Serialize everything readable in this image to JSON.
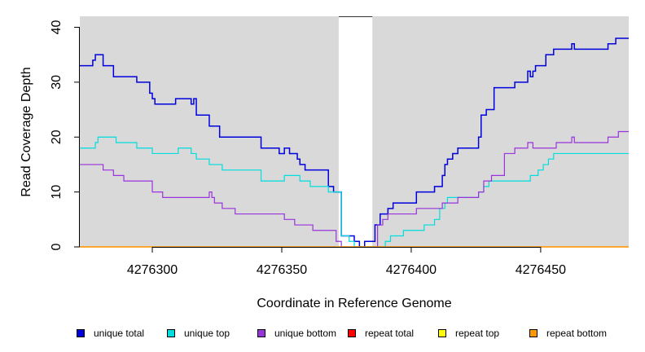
{
  "chart_data": {
    "type": "line",
    "title": "",
    "xlabel": "Coordinate in Reference Genome",
    "ylabel": "Read Coverage Depth",
    "xlim": [
      4276272,
      4276484
    ],
    "ylim": [
      0,
      42
    ],
    "x_ticks": [
      4276300,
      4276350,
      4276400,
      4276450
    ],
    "y_ticks": [
      0,
      10,
      20,
      30,
      40
    ],
    "background_color": "#d9d9d9",
    "gap_region": [
      4276372,
      4276385
    ],
    "legend_position": "bottom",
    "series": [
      {
        "name": "unique total",
        "color": "#0000dd",
        "points": [
          [
            4276272,
            33
          ],
          [
            4276277,
            34
          ],
          [
            4276278,
            35
          ],
          [
            4276281,
            33
          ],
          [
            4276285,
            31
          ],
          [
            4276294,
            30
          ],
          [
            4276299,
            28
          ],
          [
            4276300,
            27
          ],
          [
            4276301,
            26
          ],
          [
            4276309,
            27
          ],
          [
            4276315,
            26
          ],
          [
            4276316,
            27
          ],
          [
            4276317,
            24
          ],
          [
            4276322,
            22
          ],
          [
            4276326,
            20
          ],
          [
            4276336,
            20
          ],
          [
            4276342,
            18
          ],
          [
            4276349,
            17
          ],
          [
            4276351,
            18
          ],
          [
            4276353,
            17
          ],
          [
            4276356,
            16
          ],
          [
            4276357,
            15
          ],
          [
            4276359,
            14
          ],
          [
            4276368,
            11
          ],
          [
            4276370,
            10
          ],
          [
            4276373,
            2
          ],
          [
            4276378,
            1
          ],
          [
            4276380,
            0
          ],
          [
            4276382,
            1
          ],
          [
            4276386,
            4
          ],
          [
            4276388,
            6
          ],
          [
            4276391,
            7
          ],
          [
            4276393,
            8
          ],
          [
            4276402,
            10
          ],
          [
            4276409,
            11
          ],
          [
            4276412,
            13
          ],
          [
            4276413,
            15
          ],
          [
            4276414,
            16
          ],
          [
            4276416,
            17
          ],
          [
            4276418,
            18
          ],
          [
            4276426,
            20
          ],
          [
            4276427,
            24
          ],
          [
            4276429,
            25
          ],
          [
            4276432,
            29
          ],
          [
            4276440,
            30
          ],
          [
            4276445,
            32
          ],
          [
            4276446,
            31
          ],
          [
            4276447,
            32
          ],
          [
            4276448,
            33
          ],
          [
            4276452,
            35
          ],
          [
            4276455,
            36
          ],
          [
            4276462,
            37
          ],
          [
            4276463,
            36
          ],
          [
            4276476,
            37
          ],
          [
            4276479,
            38
          ],
          [
            4276484,
            38
          ]
        ]
      },
      {
        "name": "unique top",
        "color": "#00dddd",
        "points": [
          [
            4276272,
            18
          ],
          [
            4276278,
            19
          ],
          [
            4276279,
            20
          ],
          [
            4276286,
            19
          ],
          [
            4276294,
            18
          ],
          [
            4276300,
            17
          ],
          [
            4276310,
            18
          ],
          [
            4276315,
            17
          ],
          [
            4276317,
            16
          ],
          [
            4276322,
            15
          ],
          [
            4276327,
            14
          ],
          [
            4276342,
            12
          ],
          [
            4276351,
            13
          ],
          [
            4276357,
            12
          ],
          [
            4276361,
            11
          ],
          [
            4276368,
            10
          ],
          [
            4276373,
            2
          ],
          [
            4276376,
            1
          ],
          [
            4276378,
            0
          ],
          [
            4276388,
            0
          ],
          [
            4276390,
            1
          ],
          [
            4276392,
            2
          ],
          [
            4276397,
            3
          ],
          [
            4276405,
            4
          ],
          [
            4276409,
            5
          ],
          [
            4276411,
            7
          ],
          [
            4276413,
            8
          ],
          [
            4276414,
            9
          ],
          [
            4276426,
            10
          ],
          [
            4276428,
            11
          ],
          [
            4276430,
            12
          ],
          [
            4276446,
            13
          ],
          [
            4276449,
            14
          ],
          [
            4276451,
            15
          ],
          [
            4276453,
            16
          ],
          [
            4276455,
            17
          ],
          [
            4276484,
            17
          ]
        ]
      },
      {
        "name": "unique bottom",
        "color": "#9933dd",
        "points": [
          [
            4276272,
            15
          ],
          [
            4276281,
            14
          ],
          [
            4276285,
            13
          ],
          [
            4276289,
            12
          ],
          [
            4276300,
            10
          ],
          [
            4276304,
            9
          ],
          [
            4276322,
            10
          ],
          [
            4276323,
            9
          ],
          [
            4276324,
            8
          ],
          [
            4276327,
            7
          ],
          [
            4276332,
            6
          ],
          [
            4276351,
            5
          ],
          [
            4276355,
            4
          ],
          [
            4276362,
            3
          ],
          [
            4276371,
            1
          ],
          [
            4276373,
            0
          ],
          [
            4276385,
            0
          ],
          [
            4276387,
            4
          ],
          [
            4276389,
            5
          ],
          [
            4276391,
            6
          ],
          [
            4276402,
            7
          ],
          [
            4276412,
            8
          ],
          [
            4276418,
            9
          ],
          [
            4276426,
            10
          ],
          [
            4276428,
            12
          ],
          [
            4276431,
            13
          ],
          [
            4276436,
            17
          ],
          [
            4276440,
            18
          ],
          [
            4276445,
            19
          ],
          [
            4276447,
            18
          ],
          [
            4276456,
            19
          ],
          [
            4276462,
            20
          ],
          [
            4276463,
            19
          ],
          [
            4276474,
            19
          ],
          [
            4276476,
            20
          ],
          [
            4276480,
            21
          ],
          [
            4276484,
            21
          ]
        ]
      },
      {
        "name": "repeat total",
        "color": "#ff0000",
        "points": [
          [
            4276272,
            0
          ],
          [
            4276484,
            0
          ]
        ]
      },
      {
        "name": "repeat top",
        "color": "#ffff00",
        "points": [
          [
            4276272,
            0
          ],
          [
            4276484,
            0
          ]
        ]
      },
      {
        "name": "repeat bottom",
        "color": "#ff9900",
        "points": [
          [
            4276272,
            0
          ],
          [
            4276484,
            0
          ]
        ]
      }
    ]
  }
}
